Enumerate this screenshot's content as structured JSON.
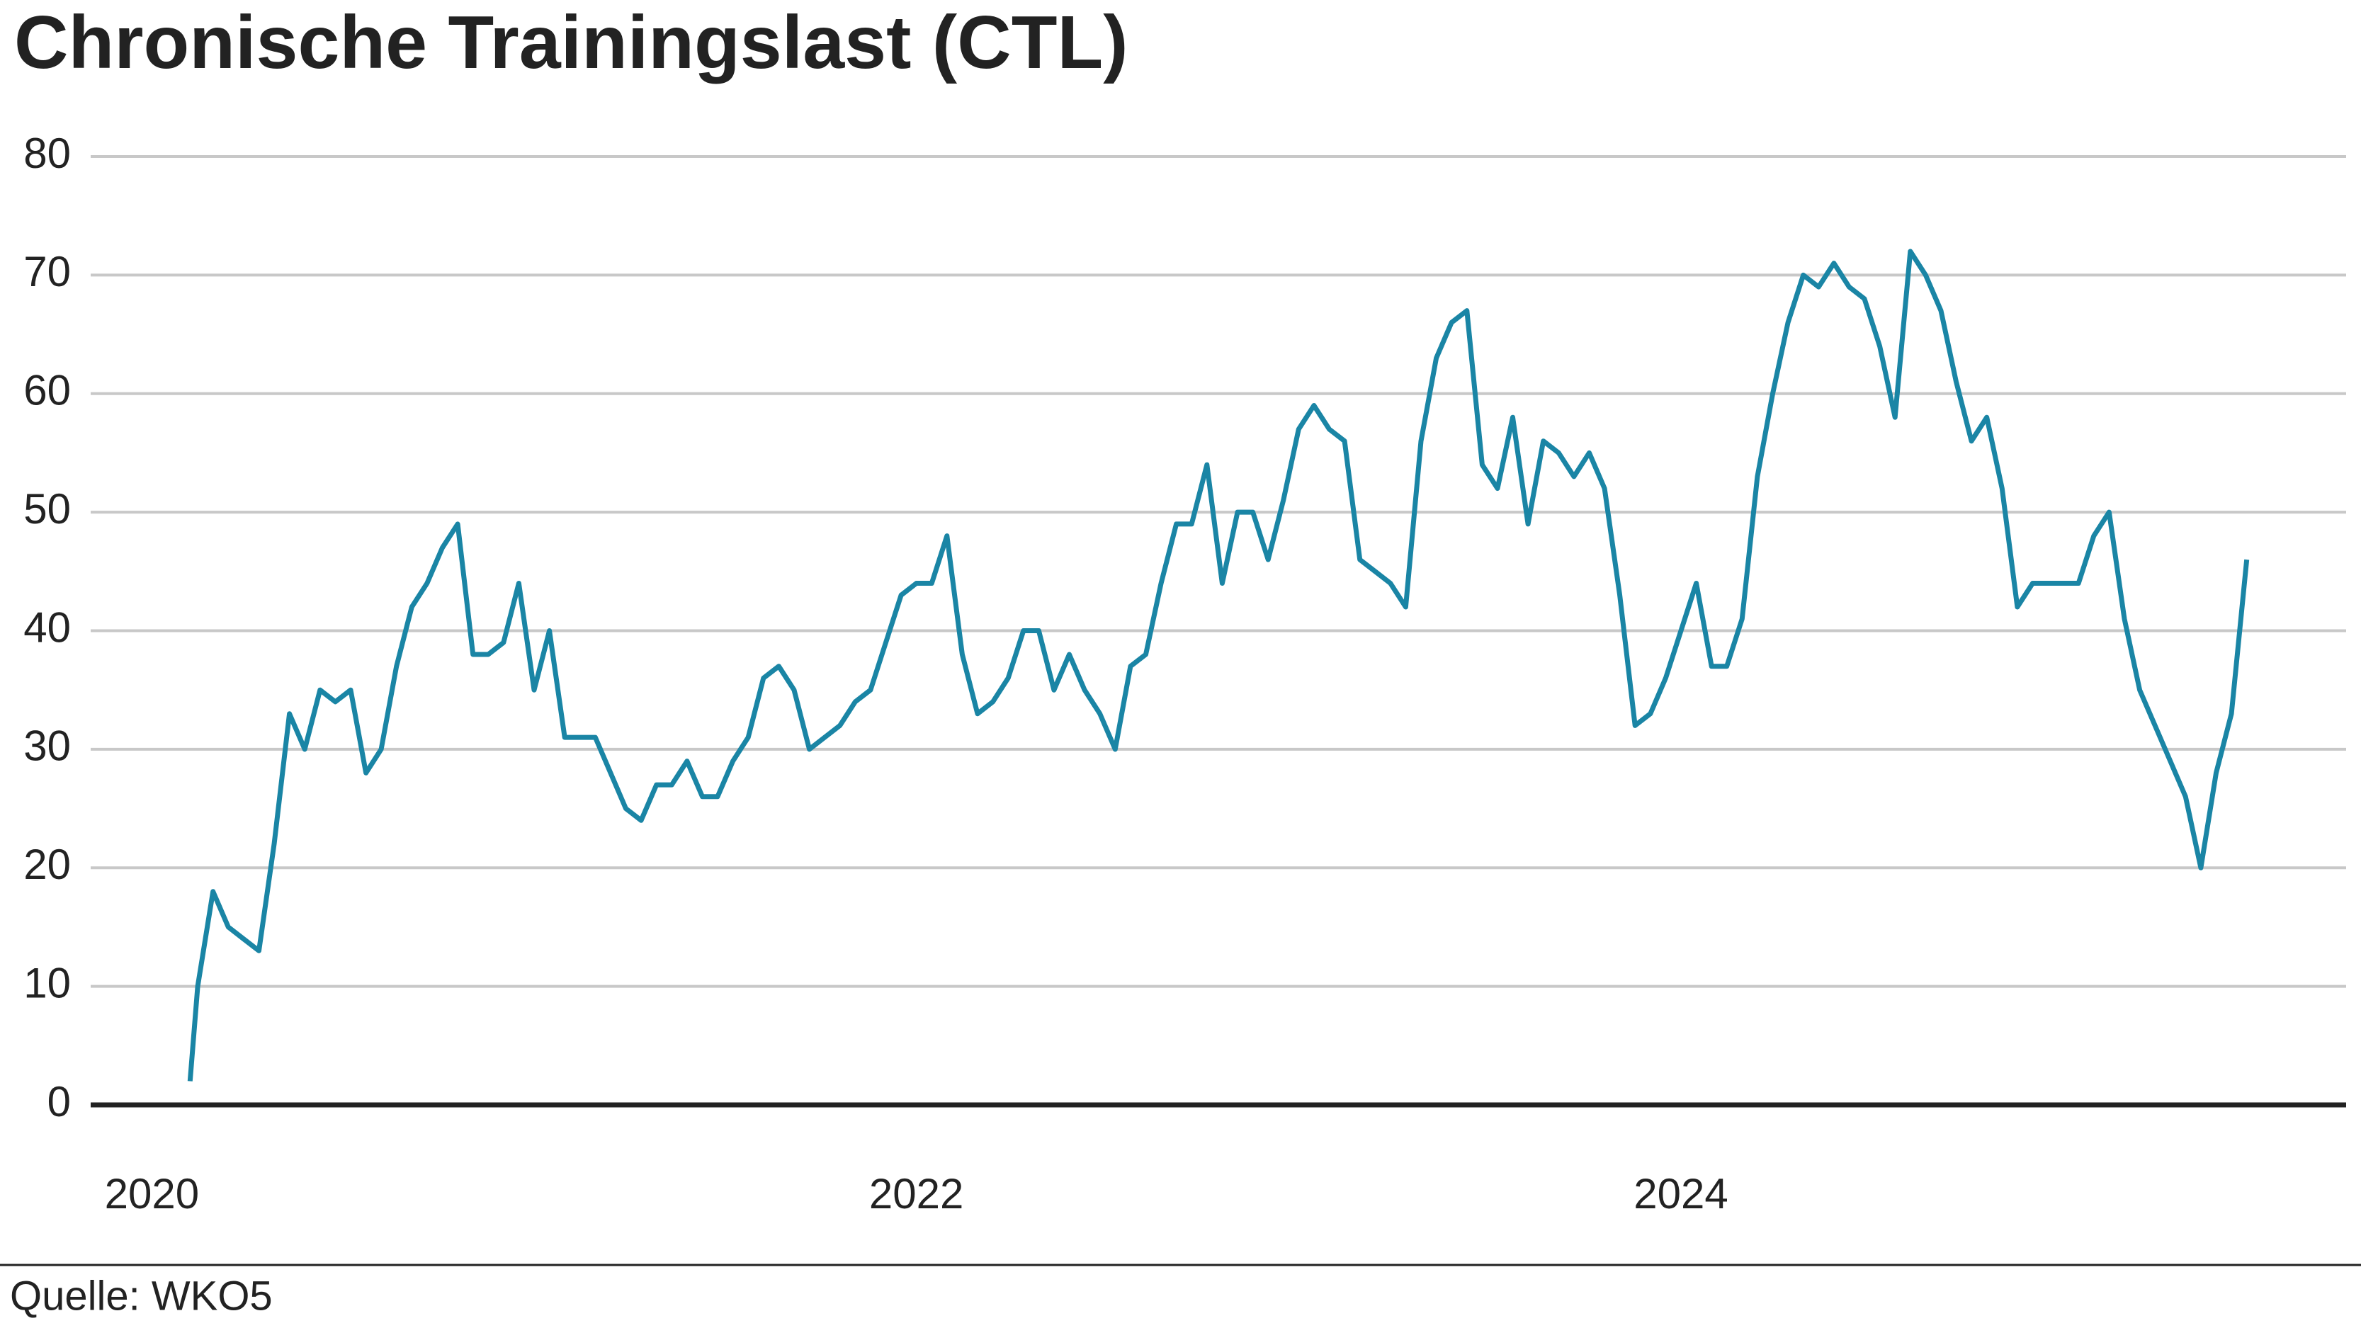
{
  "chart_data": {
    "type": "line",
    "title": "Chronische Trainingslast (CTL)",
    "source": "Quelle: WKO5",
    "xlim": [
      2019.84,
      2025.74
    ],
    "xticks": [
      2020,
      2022,
      2024
    ],
    "ylim": [
      0,
      80
    ],
    "yticks": [
      0,
      10,
      20,
      30,
      40,
      50,
      60,
      70,
      80
    ],
    "grid": true,
    "series": [
      {
        "color": "#1a85a5",
        "x": [
          2020.1,
          2020.12,
          2020.16,
          2020.2,
          2020.24,
          2020.28,
          2020.32,
          2020.36,
          2020.4,
          2020.44,
          2020.48,
          2020.52,
          2020.56,
          2020.6,
          2020.64,
          2020.68,
          2020.72,
          2020.76,
          2020.8,
          2020.84,
          2020.88,
          2020.92,
          2020.96,
          2021.0,
          2021.04,
          2021.08,
          2021.12,
          2021.16,
          2021.2,
          2021.24,
          2021.28,
          2021.32,
          2021.36,
          2021.4,
          2021.44,
          2021.48,
          2021.52,
          2021.56,
          2021.6,
          2021.64,
          2021.68,
          2021.72,
          2021.76,
          2021.8,
          2021.84,
          2021.88,
          2021.92,
          2021.96,
          2022.0,
          2022.04,
          2022.08,
          2022.12,
          2022.16,
          2022.2,
          2022.24,
          2022.28,
          2022.32,
          2022.36,
          2022.4,
          2022.44,
          2022.48,
          2022.52,
          2022.56,
          2022.6,
          2022.64,
          2022.68,
          2022.72,
          2022.76,
          2022.8,
          2022.84,
          2022.88,
          2022.92,
          2022.96,
          2023.0,
          2023.04,
          2023.08,
          2023.12,
          2023.16,
          2023.2,
          2023.24,
          2023.28,
          2023.32,
          2023.36,
          2023.4,
          2023.44,
          2023.48,
          2023.52,
          2023.56,
          2023.6,
          2023.64,
          2023.68,
          2023.72,
          2023.76,
          2023.8,
          2023.84,
          2023.88,
          2023.92,
          2023.96,
          2024.0,
          2024.04,
          2024.08,
          2024.12,
          2024.16,
          2024.2,
          2024.24,
          2024.28,
          2024.32,
          2024.36,
          2024.4,
          2024.44,
          2024.48,
          2024.52,
          2024.56,
          2024.6,
          2024.64,
          2024.68,
          2024.72,
          2024.76,
          2024.8,
          2024.84,
          2024.88,
          2024.92,
          2024.96,
          2025.0,
          2025.04,
          2025.08,
          2025.12,
          2025.16,
          2025.2,
          2025.24,
          2025.28,
          2025.32,
          2025.36,
          2025.4,
          2025.44,
          2025.48
        ],
        "values": [
          2,
          10,
          18,
          15,
          14,
          13,
          22,
          33,
          30,
          35,
          34,
          35,
          28,
          30,
          37,
          42,
          44,
          47,
          49,
          38,
          38,
          39,
          44,
          35,
          40,
          31,
          31,
          31,
          28,
          25,
          24,
          27,
          27,
          29,
          26,
          26,
          29,
          31,
          36,
          37,
          35,
          30,
          31,
          32,
          34,
          35,
          39,
          43,
          44,
          44,
          48,
          38,
          33,
          34,
          36,
          40,
          40,
          35,
          38,
          35,
          33,
          30,
          37,
          38,
          44,
          49,
          49,
          54,
          44,
          50,
          50,
          46,
          51,
          57,
          59,
          57,
          56,
          46,
          45,
          44,
          42,
          56,
          63,
          66,
          67,
          54,
          52,
          58,
          49,
          56,
          55,
          53,
          55,
          52,
          43,
          32,
          33,
          36,
          40,
          44,
          37,
          37,
          41,
          53,
          60,
          66,
          70,
          69,
          71,
          69,
          68,
          64,
          58,
          72,
          70,
          67,
          61,
          56,
          58,
          52,
          42,
          44,
          44,
          44,
          44,
          48,
          50,
          41,
          35,
          32,
          29,
          26,
          20,
          28,
          33,
          46
        ]
      }
    ]
  }
}
